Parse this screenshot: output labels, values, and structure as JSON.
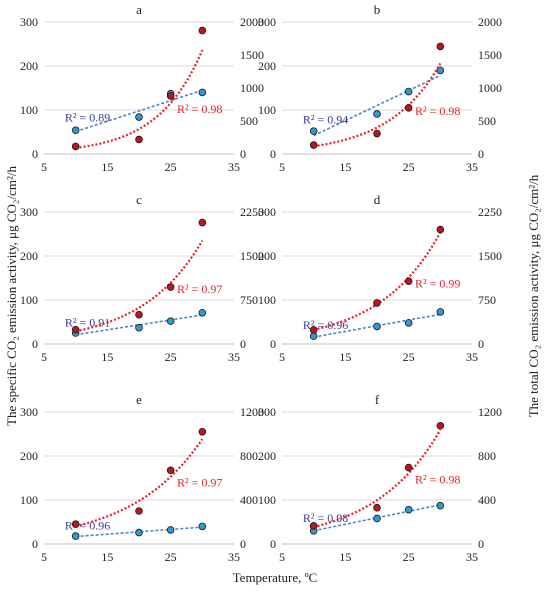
{
  "figure": {
    "xlabel": "Temperature, ºC",
    "ylabel_left": "The specific CO₂ emission activity, μg CO₂/cm²/h",
    "ylabel_right": "The total CO₂ emission activity, μg CO₂/cm²/h"
  },
  "chart_data": [
    {
      "type": "scatter",
      "title": "a",
      "xlim": [
        5,
        35
      ],
      "xticks": [
        5,
        15,
        25,
        35
      ],
      "ylim": [
        0,
        300
      ],
      "yticks": [
        0,
        100,
        200,
        300
      ],
      "ylim_right": [
        0,
        2000
      ],
      "yticks_right": [
        0,
        500,
        1000,
        1500,
        2000
      ],
      "series": [
        {
          "axis": "left",
          "color": "#2e9ad0",
          "trend": "linear",
          "x": [
            10,
            20,
            25,
            30
          ],
          "y": [
            54,
            84,
            137,
            140
          ],
          "r2_label": "R² = 0.89"
        },
        {
          "axis": "right",
          "color": "#c0141c",
          "trend": "exponential",
          "x": [
            10,
            20,
            25,
            30
          ],
          "y": [
            115,
            220,
            880,
            1870
          ],
          "r2_label": "R² = 0.98"
        }
      ]
    },
    {
      "type": "scatter",
      "title": "b",
      "xlim": [
        5,
        35
      ],
      "xticks": [
        5,
        15,
        25,
        35
      ],
      "ylim": [
        0,
        300
      ],
      "yticks": [
        0,
        100,
        200,
        300
      ],
      "ylim_right": [
        0,
        2000
      ],
      "yticks_right": [
        0,
        500,
        1000,
        1500,
        2000
      ],
      "series": [
        {
          "axis": "left",
          "color": "#2e9ad0",
          "trend": "linear",
          "x": [
            10,
            20,
            25,
            30
          ],
          "y": [
            52,
            91,
            142,
            190
          ],
          "r2_label": "R² = 0.94"
        },
        {
          "axis": "right",
          "color": "#c0141c",
          "trend": "exponential",
          "x": [
            10,
            20,
            25,
            30
          ],
          "y": [
            135,
            310,
            700,
            1630
          ],
          "r2_label": "R² = 0.98"
        }
      ]
    },
    {
      "type": "scatter",
      "title": "c",
      "xlim": [
        5,
        35
      ],
      "xticks": [
        5,
        15,
        25,
        35
      ],
      "ylim": [
        0,
        300
      ],
      "yticks": [
        0,
        100,
        200,
        300
      ],
      "ylim_right": [
        0,
        2250
      ],
      "yticks_right": [
        0,
        750,
        1500,
        2250
      ],
      "series": [
        {
          "axis": "left",
          "color": "#2e9ad0",
          "trend": "linear",
          "x": [
            10,
            20,
            25,
            30
          ],
          "y": [
            25,
            37,
            52,
            71
          ],
          "r2_label": "R² = 0.91"
        },
        {
          "axis": "right",
          "color": "#c0141c",
          "trend": "exponential",
          "x": [
            10,
            20,
            25,
            30
          ],
          "y": [
            245,
            500,
            970,
            2070
          ],
          "r2_label": "R² = 0.97"
        }
      ]
    },
    {
      "type": "scatter",
      "title": "d",
      "xlim": [
        5,
        35
      ],
      "xticks": [
        5,
        15,
        25,
        35
      ],
      "ylim": [
        0,
        300
      ],
      "yticks": [
        0,
        100,
        200,
        300
      ],
      "ylim_right": [
        0,
        2250
      ],
      "yticks_right": [
        0,
        750,
        1500,
        2250
      ],
      "series": [
        {
          "axis": "left",
          "color": "#2e9ad0",
          "trend": "linear",
          "x": [
            10,
            20,
            25,
            30
          ],
          "y": [
            18,
            40,
            48,
            73
          ],
          "r2_label": "R² = 0.96"
        },
        {
          "axis": "right",
          "color": "#c0141c",
          "trend": "exponential",
          "x": [
            10,
            20,
            25,
            30
          ],
          "y": [
            240,
            700,
            1070,
            1950
          ],
          "r2_label": "R² = 0.99"
        }
      ]
    },
    {
      "type": "scatter",
      "title": "e",
      "xlim": [
        5,
        35
      ],
      "xticks": [
        5,
        15,
        25,
        35
      ],
      "ylim": [
        0,
        300
      ],
      "yticks": [
        0,
        100,
        200,
        300
      ],
      "ylim_right": [
        0,
        1200
      ],
      "yticks_right": [
        0,
        400,
        800,
        1200
      ],
      "series": [
        {
          "axis": "left",
          "color": "#2e9ad0",
          "trend": "linear",
          "x": [
            10,
            20,
            25,
            30
          ],
          "y": [
            18,
            26,
            32,
            40
          ],
          "r2_label": "R² = 0.96"
        },
        {
          "axis": "right",
          "color": "#c0141c",
          "trend": "exponential",
          "x": [
            10,
            20,
            25,
            30
          ],
          "y": [
            180,
            300,
            670,
            1020
          ],
          "r2_label": "R² = 0.97"
        }
      ]
    },
    {
      "type": "scatter",
      "title": "f",
      "xlim": [
        5,
        35
      ],
      "xticks": [
        5,
        15,
        25,
        35
      ],
      "ylim": [
        0,
        300
      ],
      "yticks": [
        0,
        100,
        200,
        300
      ],
      "ylim_right": [
        0,
        1200
      ],
      "yticks_right": [
        0,
        400,
        800,
        1200
      ],
      "series": [
        {
          "axis": "left",
          "color": "#2e9ad0",
          "trend": "linear",
          "x": [
            10,
            20,
            25,
            30
          ],
          "y": [
            30,
            58,
            78,
            87
          ],
          "r2_label": "R² = 0.98"
        },
        {
          "axis": "right",
          "color": "#c0141c",
          "trend": "exponential",
          "x": [
            10,
            20,
            25,
            30
          ],
          "y": [
            165,
            330,
            695,
            1075
          ],
          "r2_label": "R² = 0.98"
        }
      ]
    }
  ]
}
